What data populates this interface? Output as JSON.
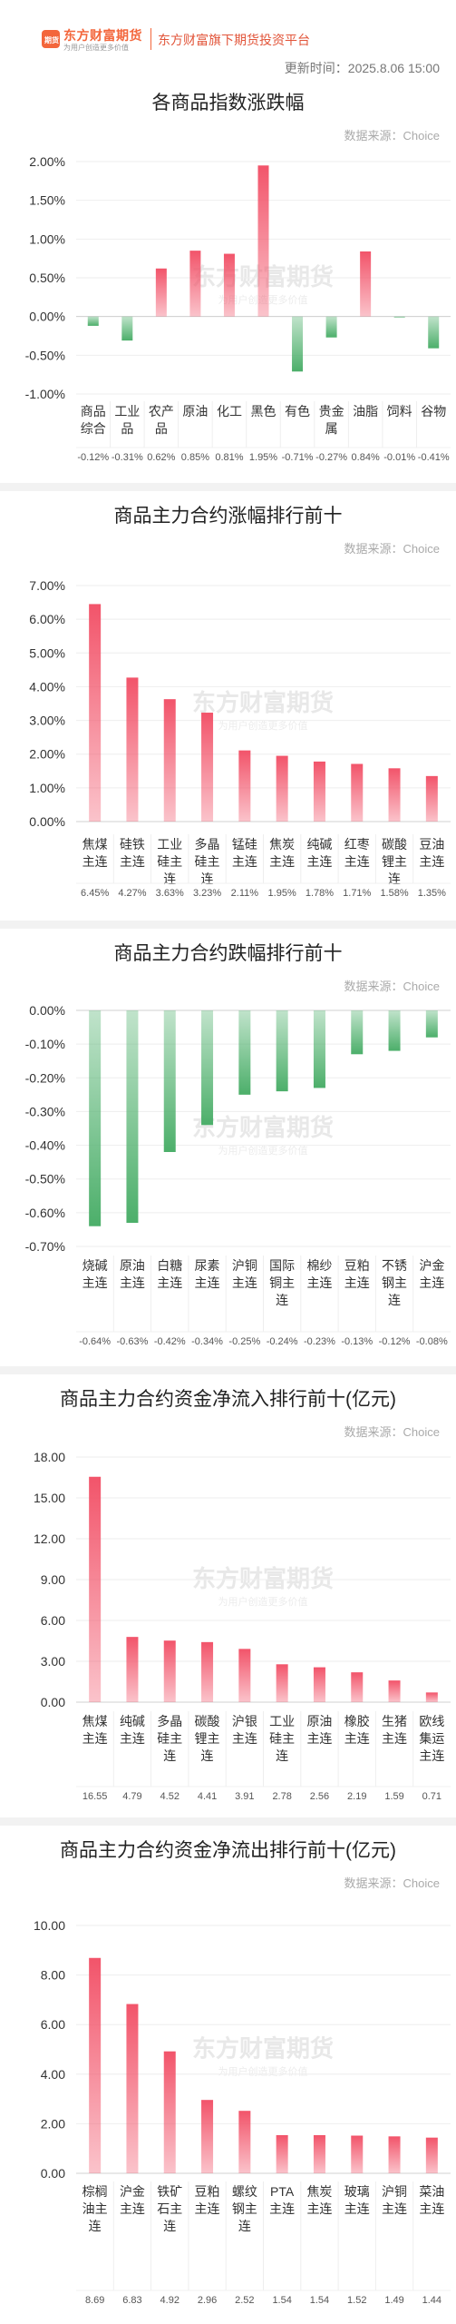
{
  "header": {
    "logo_badge": "期货",
    "brand_name": "东方财富期货",
    "brand_slogan": "为用户创造更多价值",
    "platform_title": "东方财富旗下期货投资平台",
    "update_time": "更新时间：2025.8.06 15:00"
  },
  "watermark": {
    "name": "东方财富期货",
    "slogan": "为用户创造更多价值"
  },
  "chart_data": [
    {
      "type": "bar",
      "title": "各商品指数涨跌幅",
      "source": "数据来源：Choice",
      "categories": [
        "商品综合",
        "工业品",
        "农产品",
        "原油",
        "化工",
        "黑色",
        "有色",
        "贵金属",
        "油脂",
        "饲料",
        "谷物"
      ],
      "values": [
        -0.12,
        -0.31,
        0.62,
        0.85,
        0.81,
        1.95,
        -0.71,
        -0.27,
        0.84,
        -0.01,
        -0.41
      ],
      "value_labels": [
        "-0.12%",
        "-0.31%",
        "0.62%",
        "0.85%",
        "0.81%",
        "1.95%",
        "-0.71%",
        "-0.27%",
        "0.84%",
        "-0.01%",
        "-0.41%"
      ],
      "yticks": [
        "2.00%",
        "1.50%",
        "1.00%",
        "0.50%",
        "0.00%",
        "-0.50%",
        "-1.00%"
      ],
      "ylim": [
        -1.0,
        2.0
      ]
    },
    {
      "type": "bar",
      "title": "商品主力合约涨幅排行前十",
      "source": "数据来源：Choice",
      "categories": [
        "焦煤主连",
        "硅铁主连",
        "工业硅主连",
        "多晶硅主连",
        "锰硅主连",
        "焦炭主连",
        "纯碱主连",
        "红枣主连",
        "碳酸锂主连",
        "豆油主连"
      ],
      "values": [
        6.45,
        4.27,
        3.63,
        3.23,
        2.11,
        1.95,
        1.78,
        1.71,
        1.58,
        1.35
      ],
      "value_labels": [
        "6.45%",
        "4.27%",
        "3.63%",
        "3.23%",
        "2.11%",
        "1.95%",
        "1.78%",
        "1.71%",
        "1.58%",
        "1.35%"
      ],
      "yticks": [
        "7.00%",
        "6.00%",
        "5.00%",
        "4.00%",
        "3.00%",
        "2.00%",
        "1.00%",
        "0.00%"
      ],
      "ylim": [
        0,
        7.0
      ]
    },
    {
      "type": "bar",
      "title": "商品主力合约跌幅排行前十",
      "source": "数据来源：Choice",
      "categories": [
        "烧碱主连",
        "原油主连",
        "白糖主连",
        "尿素主连",
        "沪铜主连",
        "国际铜主连",
        "棉纱主连",
        "豆粕主连",
        "不锈钢主连",
        "沪金主连"
      ],
      "values": [
        -0.64,
        -0.63,
        -0.42,
        -0.34,
        -0.25,
        -0.24,
        -0.23,
        -0.13,
        -0.12,
        -0.08
      ],
      "value_labels": [
        "-0.64%",
        "-0.63%",
        "-0.42%",
        "-0.34%",
        "-0.25%",
        "-0.24%",
        "-0.23%",
        "-0.13%",
        "-0.12%",
        "-0.08%"
      ],
      "yticks": [
        "0.00%",
        "-0.10%",
        "-0.20%",
        "-0.30%",
        "-0.40%",
        "-0.50%",
        "-0.60%",
        "-0.70%"
      ],
      "ylim": [
        -0.7,
        0
      ]
    },
    {
      "type": "bar",
      "title": "商品主力合约资金净流入排行前十(亿元)",
      "source": "数据来源：Choice",
      "categories": [
        "焦煤主连",
        "纯碱主连",
        "多晶硅主连",
        "碳酸锂主连",
        "沪银主连",
        "工业硅主连",
        "原油主连",
        "橡胶主连",
        "生猪主连",
        "欧线集运主连"
      ],
      "values": [
        16.55,
        4.79,
        4.52,
        4.41,
        3.91,
        2.78,
        2.56,
        2.19,
        1.59,
        0.71
      ],
      "value_labels": [
        "16.55",
        "4.79",
        "4.52",
        "4.41",
        "3.91",
        "2.78",
        "2.56",
        "2.19",
        "1.59",
        "0.71"
      ],
      "yticks": [
        "18.00",
        "15.00",
        "12.00",
        "9.00",
        "6.00",
        "3.00",
        "0.00"
      ],
      "ylim": [
        0,
        18.0
      ]
    },
    {
      "type": "bar",
      "title": "商品主力合约资金净流出排行前十(亿元)",
      "source": "数据来源：Choice",
      "categories": [
        "棕榈油主连",
        "沪金主连",
        "铁矿石主连",
        "豆粕主连",
        "螺纹钢主连",
        "PTA主连",
        "焦炭主连",
        "玻璃主连",
        "沪铜主连",
        "菜油主连"
      ],
      "values": [
        8.69,
        6.83,
        4.92,
        2.96,
        2.52,
        1.54,
        1.54,
        1.52,
        1.49,
        1.44
      ],
      "value_labels": [
        "8.69",
        "6.83",
        "4.92",
        "2.96",
        "2.52",
        "1.54",
        "1.54",
        "1.52",
        "1.49",
        "1.44"
      ],
      "yticks": [
        "10.00",
        "8.00",
        "6.00",
        "4.00",
        "2.00",
        "0.00"
      ],
      "ylim": [
        0,
        10.0
      ]
    }
  ],
  "colors": {
    "red": "#f2546a",
    "green": "#4caf6a",
    "brand": "#f3663b"
  }
}
